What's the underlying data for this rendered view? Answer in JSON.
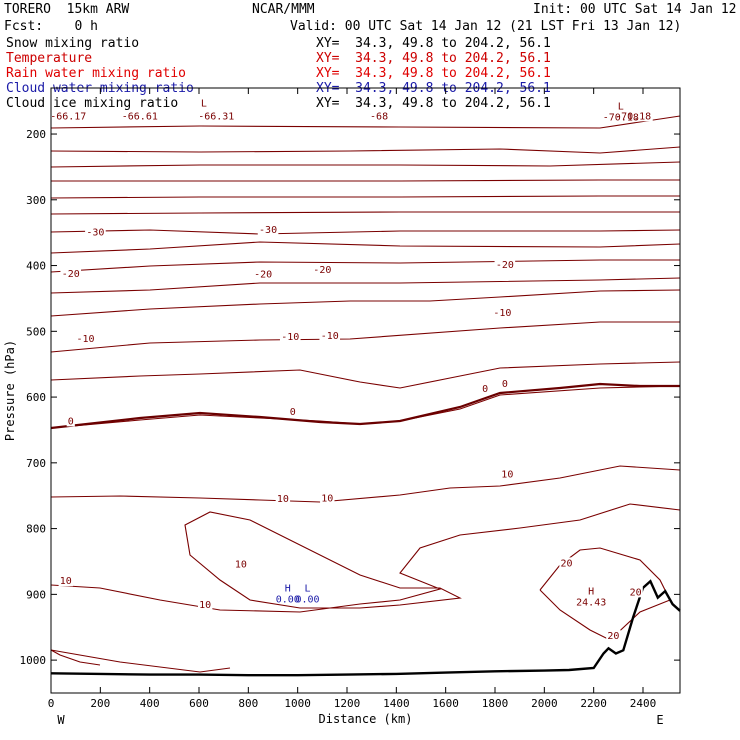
{
  "header": {
    "model": "TORERO  15km ARW",
    "center": "NCAR/MMM",
    "init": "Init: 00 UTC Sat 14 Jan 12",
    "fcst": "Fcst:    0 h",
    "valid": "Valid: 00 UTC Sat 14 Jan 12 (21 LST Fri 13 Jan 12)",
    "fields": [
      {
        "name": "Snow mixing ratio",
        "xy": "XY=  34.3, 49.8 to 204.2, 56.1",
        "color": "#000000"
      },
      {
        "name": "Temperature",
        "xy": "XY=  34.3, 49.8 to 204.2, 56.1",
        "color": "#cc0000"
      },
      {
        "name": "Rain water mixing ratio",
        "xy": "XY=  34.3, 49.8 to 204.2, 56.1",
        "color": "#e00000"
      },
      {
        "name": "Cloud water mixing ratio",
        "xy": "XY=  34.3, 49.8 to 204.2, 56.1",
        "color": "#1a1aa8"
      },
      {
        "name": "Cloud ice mixing ratio",
        "xy": "XY=  34.3, 49.8 to 204.2, 56.1",
        "color": "#000000"
      }
    ]
  },
  "chart_data": {
    "type": "contour cross-section",
    "xlabel": "Distance (km)",
    "ylabel": "Pressure (hPa)",
    "x_left_label": "W",
    "x_right_label": "E",
    "xlim": [
      0,
      2550
    ],
    "ylim": [
      1050,
      130
    ],
    "x_ticks": [
      0,
      200,
      400,
      600,
      800,
      1000,
      1200,
      1400,
      1600,
      1800,
      2000,
      2200,
      2400
    ],
    "y_ticks": [
      200,
      300,
      400,
      500,
      600,
      700,
      800,
      900,
      1000
    ],
    "contour_field": "Temperature (C)",
    "contour_color": "#7a0000",
    "contour_labels": [
      {
        "text": "-66.17",
        "x": 70,
        "p": 176
      },
      {
        "text": "-66.61",
        "x": 360,
        "p": 176
      },
      {
        "text": "-66.31",
        "x": 670,
        "p": 176
      },
      {
        "text": "-68",
        "x": 1330,
        "p": 176
      },
      {
        "text": "-70.18",
        "x": 2360,
        "p": 176
      },
      {
        "text": "-30",
        "x": 180,
        "p": 353
      },
      {
        "text": "-30",
        "x": 880,
        "p": 349
      },
      {
        "text": "-20",
        "x": 80,
        "p": 416
      },
      {
        "text": "-20",
        "x": 860,
        "p": 417
      },
      {
        "text": "-20",
        "x": 1100,
        "p": 410
      },
      {
        "text": "-20",
        "x": 1840,
        "p": 402
      },
      {
        "text": "-10",
        "x": 140,
        "p": 515
      },
      {
        "text": "-10",
        "x": 970,
        "p": 512
      },
      {
        "text": "-10",
        "x": 1130,
        "p": 510
      },
      {
        "text": "-10",
        "x": 1830,
        "p": 475
      },
      {
        "text": "0",
        "x": 80,
        "p": 640
      },
      {
        "text": "0",
        "x": 980,
        "p": 626
      },
      {
        "text": "0",
        "x": 1760,
        "p": 591
      },
      {
        "text": "0",
        "x": 1840,
        "p": 583
      },
      {
        "text": "10",
        "x": 940,
        "p": 758
      },
      {
        "text": "10",
        "x": 1120,
        "p": 757
      },
      {
        "text": "10",
        "x": 1850,
        "p": 721
      },
      {
        "text": "10",
        "x": 770,
        "p": 858
      },
      {
        "text": "10",
        "x": 60,
        "p": 883
      },
      {
        "text": "10",
        "x": 625,
        "p": 919
      },
      {
        "text": "20",
        "x": 2090,
        "p": 856
      },
      {
        "text": "20",
        "x": 2370,
        "p": 900
      },
      {
        "text": "20",
        "x": 2280,
        "p": 966
      }
    ],
    "extrema": [
      {
        "type": "L",
        "x": 620,
        "p": 158,
        "value": ""
      },
      {
        "type": "L",
        "x": 2310,
        "p": 163,
        "value": "-70.18"
      },
      {
        "type": "H",
        "x": 960,
        "p": 896,
        "value": "0.00"
      },
      {
        "type": "L",
        "x": 1040,
        "p": 896,
        "value": "0.00"
      },
      {
        "type": "H",
        "x": 2190,
        "p": 900,
        "value": "24.43"
      }
    ],
    "zero_isotherm_bold": true,
    "terrain": {
      "x": [
        0,
        200,
        400,
        600,
        800,
        1000,
        1200,
        1400,
        1600,
        1800,
        2000,
        2100,
        2200,
        2240,
        2260,
        2290,
        2320,
        2360,
        2400,
        2430,
        2460,
        2490,
        2520,
        2550
      ],
      "p": [
        1020,
        1021,
        1022,
        1022,
        1023,
        1023,
        1022,
        1021,
        1019,
        1017,
        1016,
        1015,
        1012,
        990,
        982,
        990,
        985,
        935,
        890,
        880,
        905,
        895,
        915,
        925
      ]
    },
    "grid": false,
    "legend": "none"
  }
}
